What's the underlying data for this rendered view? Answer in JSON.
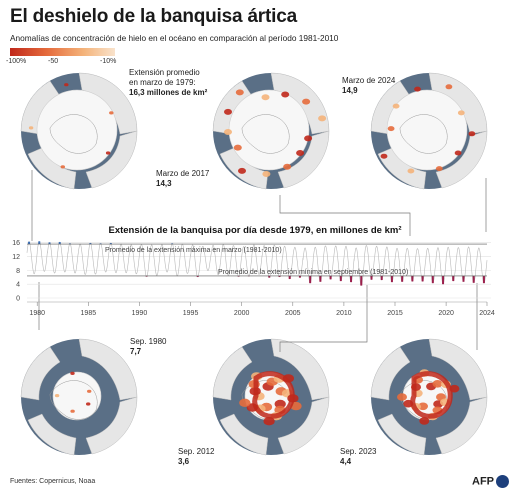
{
  "title": "El deshielo de la banquisa ártica",
  "subtitle": "Anomalías de concentración de hielo en el océano en comparación al período 1981-2010",
  "legend": {
    "labels": [
      "-100%",
      "-50",
      "-10%"
    ]
  },
  "maps": [
    {
      "id": "mar1979",
      "caption1": "Extensión promedio",
      "caption2": "en marzo de 1979:",
      "caption3": "16,3 millones de km²"
    },
    {
      "id": "mar2024",
      "caption1": "Marzo de 2024",
      "caption2": "14,9"
    },
    {
      "id": "mar2017",
      "caption1": "Marzo de 2017",
      "caption2": "14,3"
    },
    {
      "id": "sep1980",
      "caption1": "Sep. 1980",
      "caption2": "7,7"
    },
    {
      "id": "sep2012",
      "caption1": "Sep. 2012",
      "caption2": "3,6"
    },
    {
      "id": "sep2023",
      "caption1": "Sep. 2023",
      "caption2": "4,4"
    }
  ],
  "chart_data": {
    "type": "line",
    "title": "Extensión de la banquisa por día desde 1979, en millones de km²",
    "x_range": [
      1979,
      2024
    ],
    "xticks": [
      "1980",
      "1985",
      "1990",
      "1995",
      "2000",
      "2005",
      "2010",
      "2015",
      "2020",
      "2024"
    ],
    "yticks": [
      "16",
      "12",
      "8",
      "4",
      "0"
    ],
    "ylim": [
      0,
      16.5
    ],
    "reference_lines": [
      {
        "label": "Promedio de la extensión máxima en marzo (1981-2010)",
        "value": 15.6
      },
      {
        "label": "Promedio de la extensión mínima en septiembre (1981-2010)",
        "value": 6.4
      }
    ],
    "annual_max": [
      16.3,
      16.4,
      16.1,
      16.2,
      15.8,
      15.6,
      15.9,
      15.8,
      15.9,
      15.6,
      15.4,
      15.5,
      15.4,
      15.5,
      15.8,
      15.6,
      15.4,
      15.0,
      15.3,
      15.5,
      15.2,
      14.9,
      15.4,
      15.2,
      15.3,
      15.0,
      14.7,
      14.5,
      14.7,
      15.1,
      15.1,
      15.0,
      14.5,
      15.2,
      15.0,
      14.8,
      14.4,
      14.4,
      14.3,
      14.4,
      14.6,
      14.7,
      14.6,
      14.8,
      14.5,
      14.9
    ],
    "annual_min": [
      7.0,
      7.7,
      7.2,
      7.5,
      7.2,
      6.8,
      6.9,
      7.5,
      7.3,
      7.3,
      7.0,
      6.2,
      6.5,
      7.5,
      6.4,
      7.1,
      6.1,
      7.9,
      6.7,
      6.5,
      6.2,
      6.3,
      6.8,
      5.9,
      6.1,
      5.5,
      5.9,
      4.3,
      4.7,
      5.4,
      4.9,
      4.6,
      3.6,
      5.3,
      5.2,
      4.6,
      4.7,
      4.8,
      4.8,
      4.3,
      4.0,
      4.9,
      4.7,
      4.4,
      4.3
    ],
    "colors": {
      "line": "#b8b8b8",
      "above": "#3a6fb8",
      "below": "#9c1f4c"
    }
  },
  "footer": {
    "source": "Fuentes: Copernicus, Noaa",
    "logo": "AFP"
  }
}
